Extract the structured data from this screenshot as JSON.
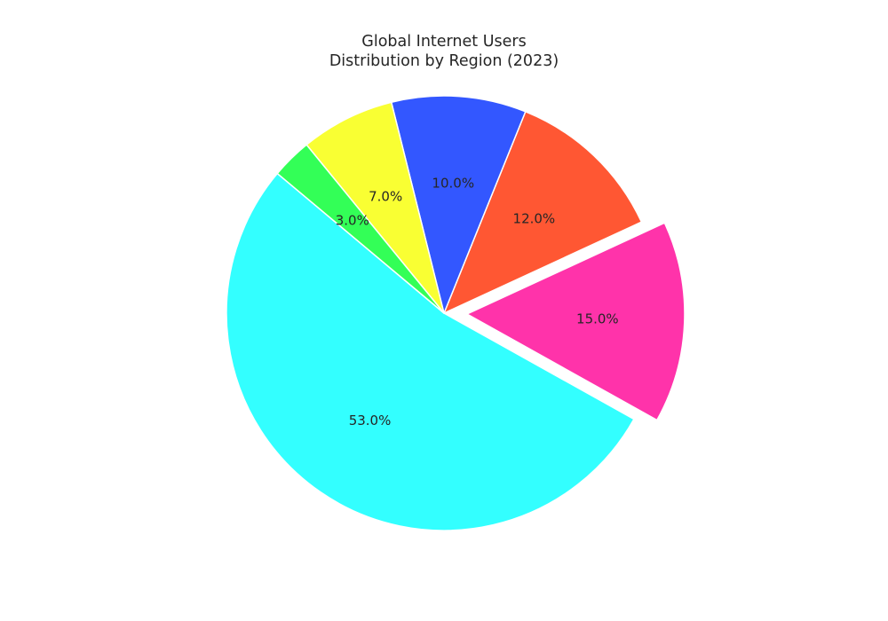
{
  "chart_data": {
    "type": "pie",
    "title_line1": "Global Internet Users",
    "title_line2": "Distribution by Region (2023)",
    "slices": [
      {
        "label": "53.0%",
        "value": 53.0,
        "color": "#33ffff",
        "explode": false
      },
      {
        "label": "15.0%",
        "value": 15.0,
        "color": "#ff33aa",
        "explode": true
      },
      {
        "label": "12.0%",
        "value": 12.0,
        "color": "#ff5733",
        "explode": false
      },
      {
        "label": "10.0%",
        "value": 10.0,
        "color": "#3357ff",
        "explode": false
      },
      {
        "label": "7.0%",
        "value": 7.0,
        "color": "#f9ff33",
        "explode": false
      },
      {
        "label": "3.0%",
        "value": 3.0,
        "color": "#33ff57",
        "explode": false
      }
    ],
    "legend": "none"
  }
}
